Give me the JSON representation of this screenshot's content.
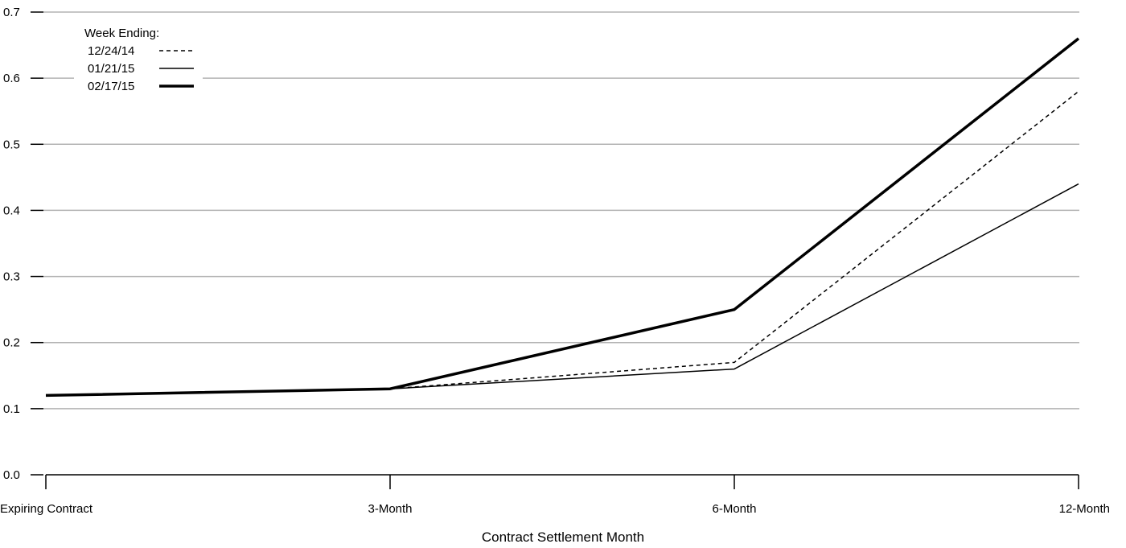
{
  "chart_data": {
    "type": "line",
    "categories": [
      "Expiring Contract",
      "3-Month",
      "6-Month",
      "12-Month"
    ],
    "series": [
      {
        "name": "12/24/14",
        "values": [
          0.12,
          0.13,
          0.17,
          0.58
        ],
        "style": "dashed",
        "color": "#000000"
      },
      {
        "name": "01/21/15",
        "values": [
          0.12,
          0.13,
          0.16,
          0.44
        ],
        "style": "thin",
        "color": "#000000"
      },
      {
        "name": "02/17/15",
        "values": [
          0.12,
          0.13,
          0.25,
          0.66
        ],
        "style": "thick",
        "color": "#000000"
      }
    ],
    "xlabel": "Contract Settlement Month",
    "ylabel": "",
    "ylim": [
      0,
      0.7
    ],
    "yticks": [
      0.0,
      0.1,
      0.2,
      0.3,
      0.4,
      0.5,
      0.6,
      0.7
    ],
    "ytick_labels": [
      "0.0",
      "0.1",
      "0.2",
      "0.3",
      "0.4",
      "0.5",
      "0.6",
      "0.7"
    ],
    "grid": true,
    "gridline_color": "#b3b3b3",
    "legend": {
      "title": "Week Ending:",
      "placement": "top-left"
    }
  }
}
